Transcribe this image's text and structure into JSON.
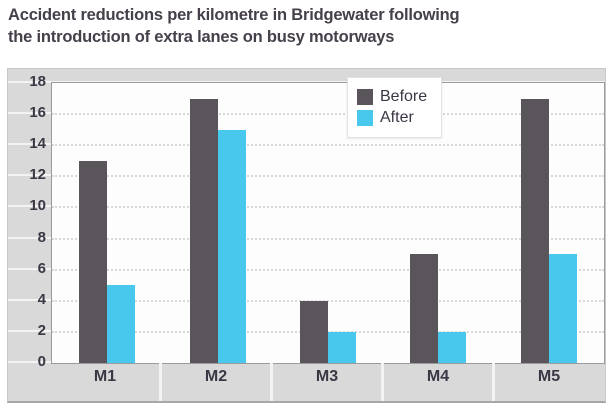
{
  "header": {
    "title_line1": "Accident reductions per kilometre in Bridgewater following",
    "title_line2": "the introduction of extra lanes on busy motorways"
  },
  "chart_data": {
    "type": "bar",
    "title": "Accident reductions per kilometre in Bridgewater following the introduction of extra lanes on busy motorways",
    "categories": [
      "M1",
      "M2",
      "M3",
      "M4",
      "M5"
    ],
    "series": [
      {
        "name": "Before",
        "color": "#5a555b",
        "values": [
          13,
          17,
          4,
          7,
          17
        ]
      },
      {
        "name": "After",
        "color": "#48c8ec",
        "values": [
          5,
          15,
          2,
          2,
          7
        ]
      }
    ],
    "ylim": [
      0,
      18
    ],
    "yticks": [
      0,
      2,
      4,
      6,
      8,
      10,
      12,
      14,
      16,
      18
    ],
    "xlabel": "",
    "ylabel": "",
    "grid": true,
    "legend_position": "top-center"
  },
  "colors": {
    "chart_background": "#d9d9d9",
    "plot_background": "#fdfdfd",
    "gridline_plot": "#d8d8d8",
    "gridline_margin": "#f3f3f3",
    "axis_text": "#3c3744",
    "title_text": "#45404a"
  }
}
